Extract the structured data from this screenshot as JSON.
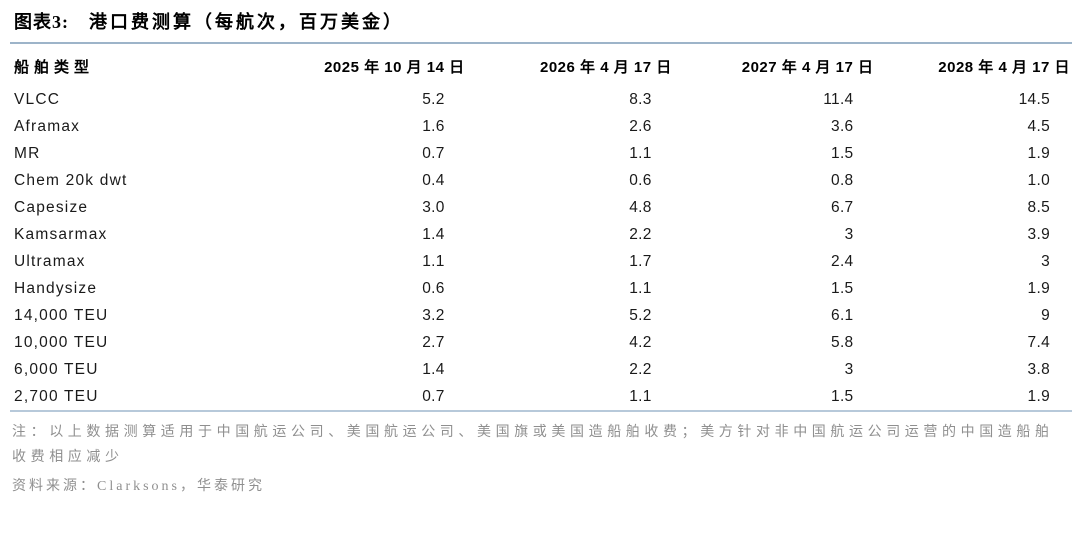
{
  "figure": {
    "label": "图表3:",
    "title": "港口费测算（每航次，百万美金）"
  },
  "table": {
    "columns": [
      "船舶类型",
      "2025 年 10 月 14 日",
      "2026 年 4 月 17 日",
      "2027 年 4 月 17 日",
      "2028 年 4 月 17 日"
    ],
    "rows": [
      {
        "type": "VLCC",
        "values": [
          "5.2",
          "8.3",
          "11.4",
          "14.5"
        ]
      },
      {
        "type": "Aframax",
        "values": [
          "1.6",
          "2.6",
          "3.6",
          "4.5"
        ]
      },
      {
        "type": "MR",
        "values": [
          "0.7",
          "1.1",
          "1.5",
          "1.9"
        ]
      },
      {
        "type": "Chem 20k dwt",
        "values": [
          "0.4",
          "0.6",
          "0.8",
          "1.0"
        ]
      },
      {
        "type": "Capesize",
        "values": [
          "3.0",
          "4.8",
          "6.7",
          "8.5"
        ]
      },
      {
        "type": "Kamsarmax",
        "values": [
          "1.4",
          "2.2",
          "3",
          "3.9"
        ]
      },
      {
        "type": "Ultramax",
        "values": [
          "1.1",
          "1.7",
          "2.4",
          "3"
        ]
      },
      {
        "type": "Handysize",
        "values": [
          "0.6",
          "1.1",
          "1.5",
          "1.9"
        ]
      },
      {
        "type": "14,000 TEU",
        "values": [
          "3.2",
          "5.2",
          "6.1",
          "9"
        ]
      },
      {
        "type": "10,000 TEU",
        "values": [
          "2.7",
          "4.2",
          "5.8",
          "7.4"
        ]
      },
      {
        "type": "6,000 TEU",
        "values": [
          "1.4",
          "2.2",
          "3",
          "3.8"
        ]
      },
      {
        "type": "2,700 TEU",
        "values": [
          "0.7",
          "1.1",
          "1.5",
          "1.9"
        ]
      }
    ]
  },
  "footnote": "注：以上数据测算适用于中国航运公司、美国航运公司、美国旗或美国造船舶收费；美方针对非中国航运公司运营的中国造船舶收费相应减少",
  "source": "资料来源：Clarksons，华泰研究",
  "colors": {
    "title_rule": "#9db4c9",
    "table_bottom_rule": "#b7c9da",
    "note_gray": "#8f8f8f",
    "text_black": "#1a1a1a"
  },
  "chart_data": {
    "type": "table",
    "title": "港口费测算（每航次，百万美金）",
    "columns": [
      "船舶类型",
      "2025年10月14日",
      "2026年4月17日",
      "2027年4月17日",
      "2028年4月17日"
    ],
    "rows": [
      [
        "VLCC",
        5.2,
        8.3,
        11.4,
        14.5
      ],
      [
        "Aframax",
        1.6,
        2.6,
        3.6,
        4.5
      ],
      [
        "MR",
        0.7,
        1.1,
        1.5,
        1.9
      ],
      [
        "Chem 20k dwt",
        0.4,
        0.6,
        0.8,
        1.0
      ],
      [
        "Capesize",
        3.0,
        4.8,
        6.7,
        8.5
      ],
      [
        "Kamsarmax",
        1.4,
        2.2,
        3,
        3.9
      ],
      [
        "Ultramax",
        1.1,
        1.7,
        2.4,
        3
      ],
      [
        "Handysize",
        0.6,
        1.1,
        1.5,
        1.9
      ],
      [
        "14,000 TEU",
        3.2,
        5.2,
        6.1,
        9
      ],
      [
        "10,000 TEU",
        2.7,
        4.2,
        5.8,
        7.4
      ],
      [
        "6,000 TEU",
        1.4,
        2.2,
        3,
        3.8
      ],
      [
        "2,700 TEU",
        0.7,
        1.1,
        1.5,
        1.9
      ]
    ]
  }
}
